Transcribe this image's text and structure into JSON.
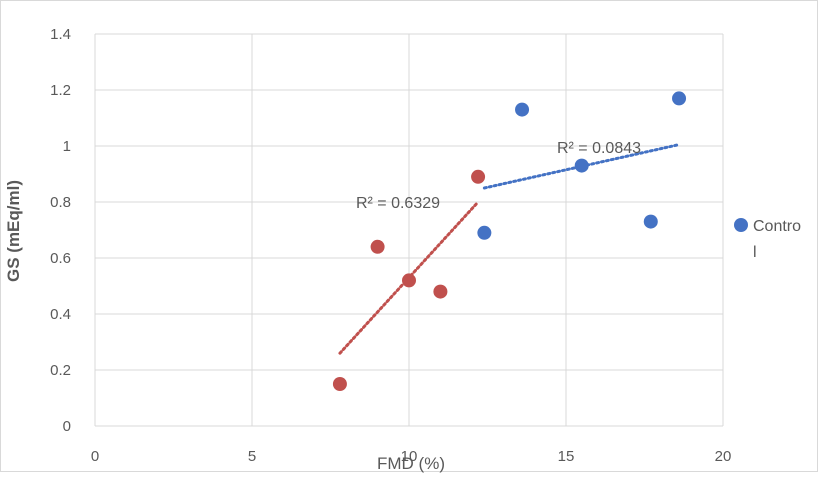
{
  "chart_data": {
    "type": "scatter",
    "title": "",
    "xlabel": "FMD (%)",
    "ylabel": "GS (mEq/ml)",
    "xlim": [
      0,
      20
    ],
    "ylim": [
      0,
      1.4
    ],
    "x_ticks": [
      "0",
      "5",
      "10",
      "15",
      "20"
    ],
    "y_ticks": [
      "0",
      "0.2",
      "0.4",
      "0.6",
      "0.8",
      "1",
      "1.2",
      "1.4"
    ],
    "grid": true,
    "legend_position": "right",
    "series": [
      {
        "name": "Control",
        "legend_lines": [
          "Contro",
          "l"
        ],
        "color": "#4472c4",
        "points": [
          {
            "x": 12.4,
            "y": 0.69
          },
          {
            "x": 13.6,
            "y": 1.13
          },
          {
            "x": 15.5,
            "y": 0.93
          },
          {
            "x": 17.7,
            "y": 0.73
          },
          {
            "x": 18.6,
            "y": 1.17
          }
        ],
        "trendline": {
          "x": [
            12.4,
            18.6
          ],
          "y": [
            0.85,
            1.005
          ],
          "r2_label": "R² = 0.0843"
        }
      },
      {
        "color": "#c0504d",
        "points": [
          {
            "x": 7.8,
            "y": 0.15
          },
          {
            "x": 9.0,
            "y": 0.64
          },
          {
            "x": 10.0,
            "y": 0.52
          },
          {
            "x": 11.0,
            "y": 0.48
          },
          {
            "x": 12.2,
            "y": 0.89
          }
        ],
        "trendline": {
          "x": [
            7.8,
            12.2
          ],
          "y": [
            0.26,
            0.8
          ],
          "r2_label": "R² = 0.6329"
        }
      }
    ]
  }
}
